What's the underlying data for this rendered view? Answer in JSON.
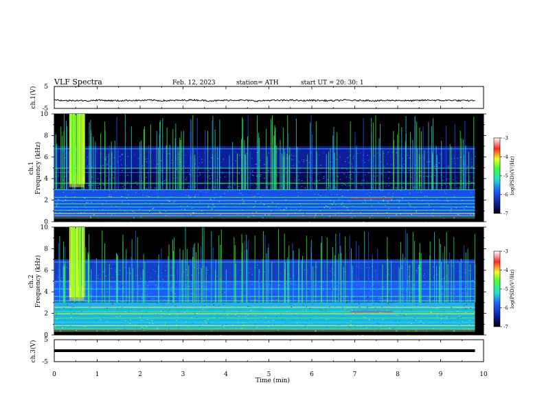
{
  "header": {
    "title": "VLF Spectra",
    "date": "Feb. 12, 2023",
    "station": "station= ATH",
    "start": "start  UT  =   20: 30: 1"
  },
  "chart_data": [
    {
      "type": "line",
      "ylabel": "ch.1(V)",
      "ylim": [
        -5,
        5
      ],
      "yticks": [
        "5",
        "-5"
      ],
      "x": [
        0,
        0.25,
        0.5,
        0.75,
        1,
        1.25,
        1.5,
        1.75,
        2,
        2.25,
        2.5,
        2.75,
        3,
        3.25,
        3.5,
        3.75,
        4,
        4.25,
        4.5,
        4.75,
        5,
        5.25,
        5.5,
        5.75,
        6,
        6.25,
        6.5,
        6.75,
        7,
        7.25,
        7.5,
        7.75,
        8,
        8.25,
        8.5,
        8.75,
        9,
        9.25,
        9.5,
        9.8
      ],
      "y": [
        -1.0,
        -1.5,
        -1.3,
        -1.6,
        -1.2,
        -1.4,
        -1.5,
        -1.3,
        -1.4,
        -1.2,
        -1.5,
        -1.4,
        -1.3,
        -1.1,
        -1.4,
        -1.5,
        -1.3,
        -1.2,
        -1.4,
        -1.6,
        -1.3,
        -1.4,
        -1.2,
        -1.5,
        -1.3,
        -1.4,
        -1.5,
        -1.2,
        -1.4,
        -1.3,
        -1.5,
        -1.4,
        -1.3,
        -1.5,
        -1.4,
        -1.2,
        -1.4,
        -1.3,
        -1.5,
        -1.4
      ]
    },
    {
      "type": "heatmap",
      "ylabel": "ch.1\nFrequency  (kHz)",
      "ylim": [
        0,
        10
      ],
      "yticks": [
        "0",
        "2",
        "4",
        "6",
        "8",
        "10"
      ],
      "colorbar": {
        "label": "log(PSD)(V²/Hz)",
        "range": [
          -7,
          -3
        ],
        "ticks": [
          "-3",
          "-4",
          "-5",
          "-6",
          "-7"
        ]
      }
    },
    {
      "type": "heatmap",
      "ylabel": "ch.2\nFrequency  (kHz)",
      "ylim": [
        0,
        10
      ],
      "yticks": [
        "0",
        "2",
        "4",
        "6",
        "8",
        "10"
      ],
      "colorbar": {
        "label": "log(PSD)(V²/Hz)",
        "range": [
          -7,
          -3
        ],
        "ticks": [
          "-3",
          "-4",
          "-5",
          "-6",
          "-7"
        ]
      }
    },
    {
      "type": "line",
      "ylabel": "ch.3(V)",
      "ylim": [
        -5,
        5
      ],
      "yticks": [
        "5",
        "-5"
      ],
      "x": [
        0,
        9.8
      ],
      "y": [
        0,
        0
      ]
    }
  ],
  "xaxis": {
    "label": "Time  (min)",
    "range": [
      0,
      10
    ],
    "ticks": [
      "0",
      "1",
      "2",
      "3",
      "4",
      "5",
      "6",
      "7",
      "8",
      "9",
      "10"
    ]
  },
  "colors": {
    "black": "#000000",
    "deep_blue": "#0a1a8c",
    "blue": "#1e5cff",
    "cyan": "#27e0d0",
    "green": "#3cff3c",
    "yellow": "#f0ff20",
    "red": "#ff2a2a"
  }
}
